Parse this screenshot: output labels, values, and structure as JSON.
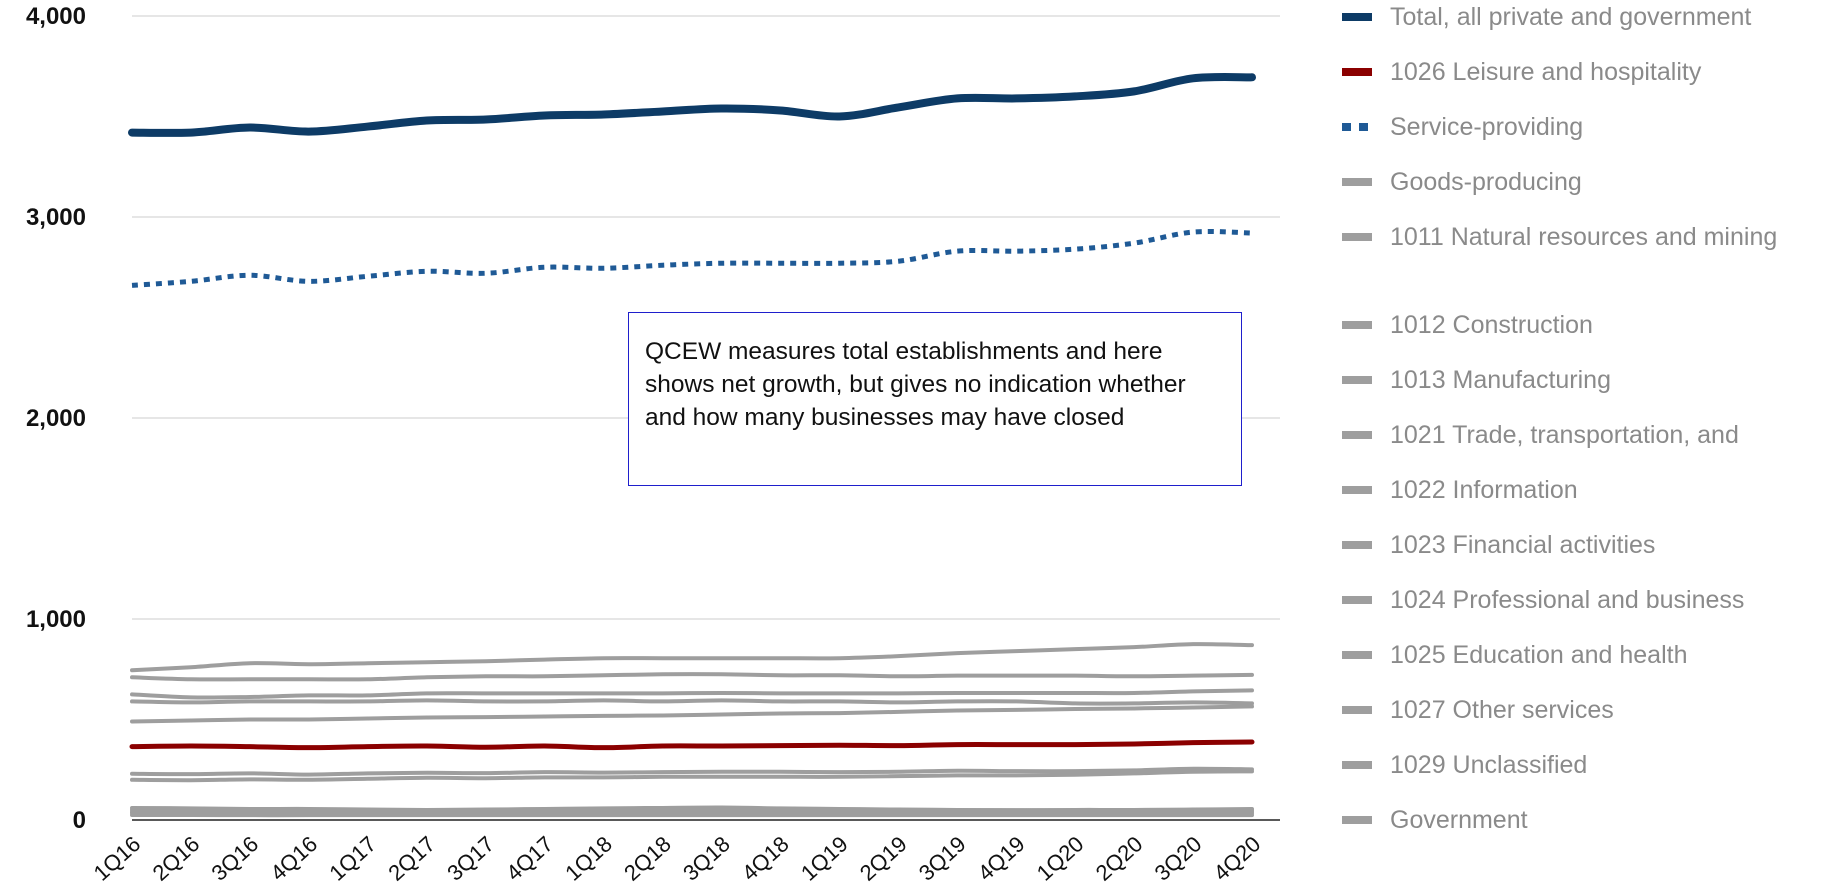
{
  "chart_data": {
    "type": "line",
    "categories": [
      "1Q16",
      "2Q16",
      "3Q16",
      "4Q16",
      "1Q17",
      "2Q17",
      "3Q17",
      "4Q17",
      "1Q18",
      "2Q18",
      "3Q18",
      "4Q18",
      "1Q19",
      "2Q19",
      "3Q19",
      "4Q19",
      "1Q20",
      "2Q20",
      "3Q20",
      "4Q20"
    ],
    "ylim": [
      0,
      4000
    ],
    "yticks": [
      0,
      1000,
      2000,
      3000,
      4000
    ],
    "ytick_labels": [
      "0",
      "1,000",
      "2,000",
      "3,000",
      "4,000"
    ],
    "grid": "horizontal",
    "legend_position": "right",
    "annotation": "QCEW measures total establishments and here shows net growth, but gives no indication whether and how many businesses may have closed",
    "series": [
      {
        "name": "Total, all private and government",
        "color": "#0d3b66",
        "style": "solid",
        "weight": "thick",
        "values": [
          3420,
          3420,
          3445,
          3425,
          3450,
          3480,
          3485,
          3505,
          3510,
          3525,
          3540,
          3530,
          3500,
          3545,
          3590,
          3590,
          3600,
          3625,
          3690,
          3695
        ]
      },
      {
        "name": "1026 Leisure and hospitality",
        "color": "#8b0000",
        "style": "solid",
        "weight": "medium",
        "values": [
          365,
          368,
          365,
          360,
          365,
          368,
          362,
          368,
          360,
          368,
          368,
          370,
          372,
          370,
          375,
          375,
          375,
          378,
          385,
          388
        ]
      },
      {
        "name": "Service-providing",
        "color": "#1f5a96",
        "style": "dotted",
        "weight": "medium",
        "values": [
          2660,
          2680,
          2710,
          2680,
          2705,
          2730,
          2720,
          2750,
          2745,
          2760,
          2770,
          2770,
          2770,
          2780,
          2830,
          2830,
          2840,
          2870,
          2925,
          2920
        ]
      },
      {
        "name": "Goods-producing",
        "color": "#9e9e9e",
        "style": "solid",
        "weight": "thin",
        "values": [
          590,
          585,
          590,
          590,
          590,
          595,
          590,
          590,
          595,
          590,
          595,
          590,
          590,
          585,
          590,
          590,
          580,
          580,
          585,
          580
        ]
      },
      {
        "name": "1011 Natural resources and mining",
        "color": "#9e9e9e",
        "style": "solid",
        "weight": "thin",
        "values": [
          25,
          25,
          24,
          24,
          24,
          24,
          24,
          24,
          24,
          24,
          24,
          24,
          24,
          24,
          24,
          24,
          24,
          24,
          24,
          24
        ]
      },
      {
        "name": "1012 Construction",
        "color": "#9e9e9e",
        "style": "solid",
        "weight": "thin",
        "values": [
          230,
          228,
          232,
          226,
          232,
          235,
          233,
          238,
          236,
          238,
          240,
          240,
          238,
          240,
          245,
          243,
          243,
          247,
          255,
          252
        ]
      },
      {
        "name": "1013 Manufacturing",
        "color": "#9e9e9e",
        "style": "solid",
        "weight": "thin",
        "values": [
          50,
          50,
          49,
          49,
          49,
          49,
          49,
          49,
          49,
          49,
          49,
          49,
          49,
          49,
          49,
          49,
          48,
          48,
          49,
          49
        ]
      },
      {
        "name": "1021 Trade, transportation, and",
        "color": "#9e9e9e",
        "style": "solid",
        "weight": "thin",
        "values": [
          625,
          610,
          612,
          620,
          620,
          630,
          630,
          630,
          630,
          630,
          632,
          630,
          630,
          630,
          632,
          632,
          632,
          632,
          640,
          645
        ]
      },
      {
        "name": "1022 Information",
        "color": "#9e9e9e",
        "style": "solid",
        "weight": "thin",
        "values": [
          40,
          40,
          40,
          40,
          40,
          40,
          40,
          40,
          40,
          40,
          40,
          40,
          40,
          40,
          40,
          40,
          40,
          40,
          41,
          41
        ]
      },
      {
        "name": "1023 Financial activities",
        "color": "#9e9e9e",
        "style": "solid",
        "weight": "thin",
        "values": [
          200,
          198,
          202,
          200,
          205,
          210,
          208,
          212,
          212,
          215,
          215,
          215,
          215,
          218,
          222,
          222,
          225,
          232,
          240,
          242
        ]
      },
      {
        "name": "1024 Professional and business",
        "color": "#9e9e9e",
        "style": "solid",
        "weight": "thin",
        "values": [
          710,
          700,
          700,
          700,
          700,
          710,
          715,
          715,
          720,
          725,
          725,
          720,
          720,
          715,
          718,
          718,
          718,
          715,
          718,
          722
        ]
      },
      {
        "name": "1025 Education and health",
        "color": "#9e9e9e",
        "style": "solid",
        "weight": "thin",
        "values": [
          745,
          760,
          780,
          775,
          780,
          785,
          790,
          798,
          805,
          805,
          805,
          805,
          805,
          815,
          830,
          840,
          850,
          860,
          875,
          870
        ]
      },
      {
        "name": "1027 Other services",
        "color": "#9e9e9e",
        "style": "solid",
        "weight": "thin",
        "values": [
          490,
          495,
          500,
          500,
          505,
          510,
          512,
          515,
          518,
          520,
          525,
          530,
          532,
          538,
          545,
          548,
          552,
          555,
          560,
          565
        ]
      },
      {
        "name": "1029 Unclassified",
        "color": "#9e9e9e",
        "style": "solid",
        "weight": "thin",
        "values": [
          60,
          58,
          55,
          55,
          52,
          50,
          52,
          55,
          58,
          60,
          62,
          58,
          55,
          52,
          50,
          48,
          50,
          50,
          52,
          55
        ]
      },
      {
        "name": "Government",
        "color": "#9e9e9e",
        "style": "solid",
        "weight": "thin",
        "values": [
          35,
          35,
          35,
          34,
          34,
          34,
          34,
          34,
          34,
          34,
          34,
          34,
          34,
          34,
          34,
          34,
          34,
          34,
          34,
          34
        ]
      }
    ]
  }
}
